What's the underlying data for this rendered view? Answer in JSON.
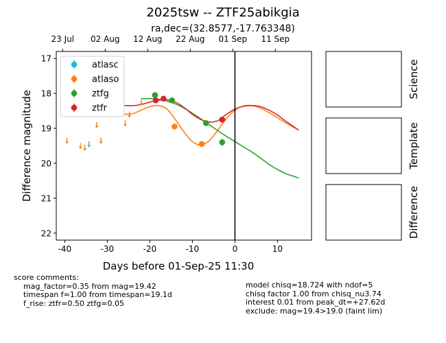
{
  "title": "2025tsw -- ZTF25abikgia",
  "subtitle": "ra,dec=(32.8577,-17.763348)",
  "chart_data": {
    "type": "scatter",
    "xlabel": "Days before 01-Sep-25 11:30",
    "ylabel": "Difference magnitude",
    "xlim": [
      -42,
      18
    ],
    "ylim": [
      22.2,
      16.8
    ],
    "x_ticks": [
      -40,
      -30,
      -20,
      -10,
      0,
      10
    ],
    "y_ticks": [
      17,
      18,
      19,
      20,
      21,
      22
    ],
    "top_axis_ticks": [
      {
        "label": "23 Jul",
        "x": -40.5
      },
      {
        "label": "02 Aug",
        "x": -30.5
      },
      {
        "label": "12 Aug",
        "x": -20.5
      },
      {
        "label": "22 Aug",
        "x": -10.5
      },
      {
        "label": "01 Sep",
        "x": -0.5
      },
      {
        "label": "11 Sep",
        "x": 9.5
      }
    ],
    "vline_x": 0,
    "legend_position": "upper-left",
    "series": [
      {
        "name": "atlasc",
        "color": "#17becf",
        "points": [],
        "upper_limits": [
          {
            "x": -34.3,
            "y": 19.45
          }
        ]
      },
      {
        "name": "atlaso",
        "color": "#ff7f0e",
        "points": [
          {
            "x": -14.2,
            "y": 18.95,
            "err": 0.05
          },
          {
            "x": -7.8,
            "y": 19.45,
            "err": 0.06
          }
        ],
        "upper_limits": [
          {
            "x": -39.5,
            "y": 19.35
          },
          {
            "x": -36.3,
            "y": 19.5
          },
          {
            "x": -35.3,
            "y": 19.55
          },
          {
            "x": -32.5,
            "y": 18.9
          },
          {
            "x": -31.5,
            "y": 19.35
          },
          {
            "x": -25.8,
            "y": 18.85
          },
          {
            "x": -24.8,
            "y": 18.6
          },
          {
            "x": -22.0,
            "y": 18.25
          }
        ]
      },
      {
        "name": "ztfg",
        "color": "#2ca02c",
        "points": [
          {
            "x": -18.8,
            "y": 18.05,
            "err": 0.08
          },
          {
            "x": -14.8,
            "y": 18.2,
            "err": 0.05
          },
          {
            "x": -6.8,
            "y": 18.85,
            "err": 0.08
          },
          {
            "x": -3.0,
            "y": 19.4,
            "err": 0.1
          }
        ],
        "upper_limits": []
      },
      {
        "name": "ztfr",
        "color": "#d62728",
        "points": [
          {
            "x": -18.6,
            "y": 18.2,
            "err": 0.05
          },
          {
            "x": -16.8,
            "y": 18.15,
            "err": 0.05
          },
          {
            "x": -3.0,
            "y": 18.75,
            "err": 0.05
          }
        ],
        "upper_limits": []
      }
    ],
    "models": [
      {
        "name": "atlaso",
        "color": "#ff7f0e",
        "x": [
          -26,
          -24,
          -22,
          -20,
          -18,
          -16,
          -14,
          -12,
          -10,
          -8,
          -6,
          -4,
          -2,
          0,
          2,
          4,
          6,
          8,
          10,
          12,
          15
        ],
        "y": [
          18.6,
          18.58,
          18.48,
          18.38,
          18.35,
          18.45,
          18.75,
          19.1,
          19.38,
          19.48,
          19.35,
          19.05,
          18.72,
          18.48,
          18.36,
          18.35,
          18.42,
          18.55,
          18.7,
          18.85,
          19.05
        ]
      },
      {
        "name": "ztfg",
        "color": "#2ca02c",
        "x": [
          -22,
          -20,
          -18,
          -16,
          -14,
          -12,
          -10,
          -8,
          -6,
          -4,
          -2,
          0,
          2,
          4,
          6,
          8,
          10,
          12,
          15
        ],
        "y": [
          18.15,
          18.15,
          18.17,
          18.22,
          18.3,
          18.42,
          18.57,
          18.73,
          18.9,
          19.07,
          19.23,
          19.38,
          19.53,
          19.68,
          19.85,
          20.03,
          20.18,
          20.3,
          20.42
        ]
      },
      {
        "name": "ztfr",
        "color": "#d62728",
        "x": [
          -26,
          -24,
          -22,
          -20,
          -18,
          -16,
          -14,
          -12,
          -10,
          -8,
          -6,
          -4,
          -2,
          0,
          2,
          4,
          6,
          8,
          10,
          12,
          15
        ],
        "y": [
          18.35,
          18.35,
          18.32,
          18.25,
          18.2,
          18.18,
          18.25,
          18.4,
          18.6,
          18.75,
          18.82,
          18.78,
          18.6,
          18.45,
          18.37,
          18.35,
          18.38,
          18.48,
          18.62,
          18.8,
          19.05
        ]
      }
    ]
  },
  "panels": [
    {
      "label": "Science"
    },
    {
      "label": "Template"
    },
    {
      "label": "Difference"
    }
  ],
  "comments_left": {
    "heading": "score comments:",
    "lines": [
      "mag_factor=0.35 from mag=19.42",
      "timespan f=1.00 from timespan=19.1d",
      "f_rise: ztfr=0.50 ztfg=0.05"
    ]
  },
  "comments_right": {
    "lines": [
      "model chisq=18.724 with ndof=5",
      "chisq factor 1.00 from chisq_nu3.74",
      "interest 0.01 from peak_dt=+27.62d",
      "exclude: mag=19.4>19.0 (faint lim)"
    ]
  }
}
